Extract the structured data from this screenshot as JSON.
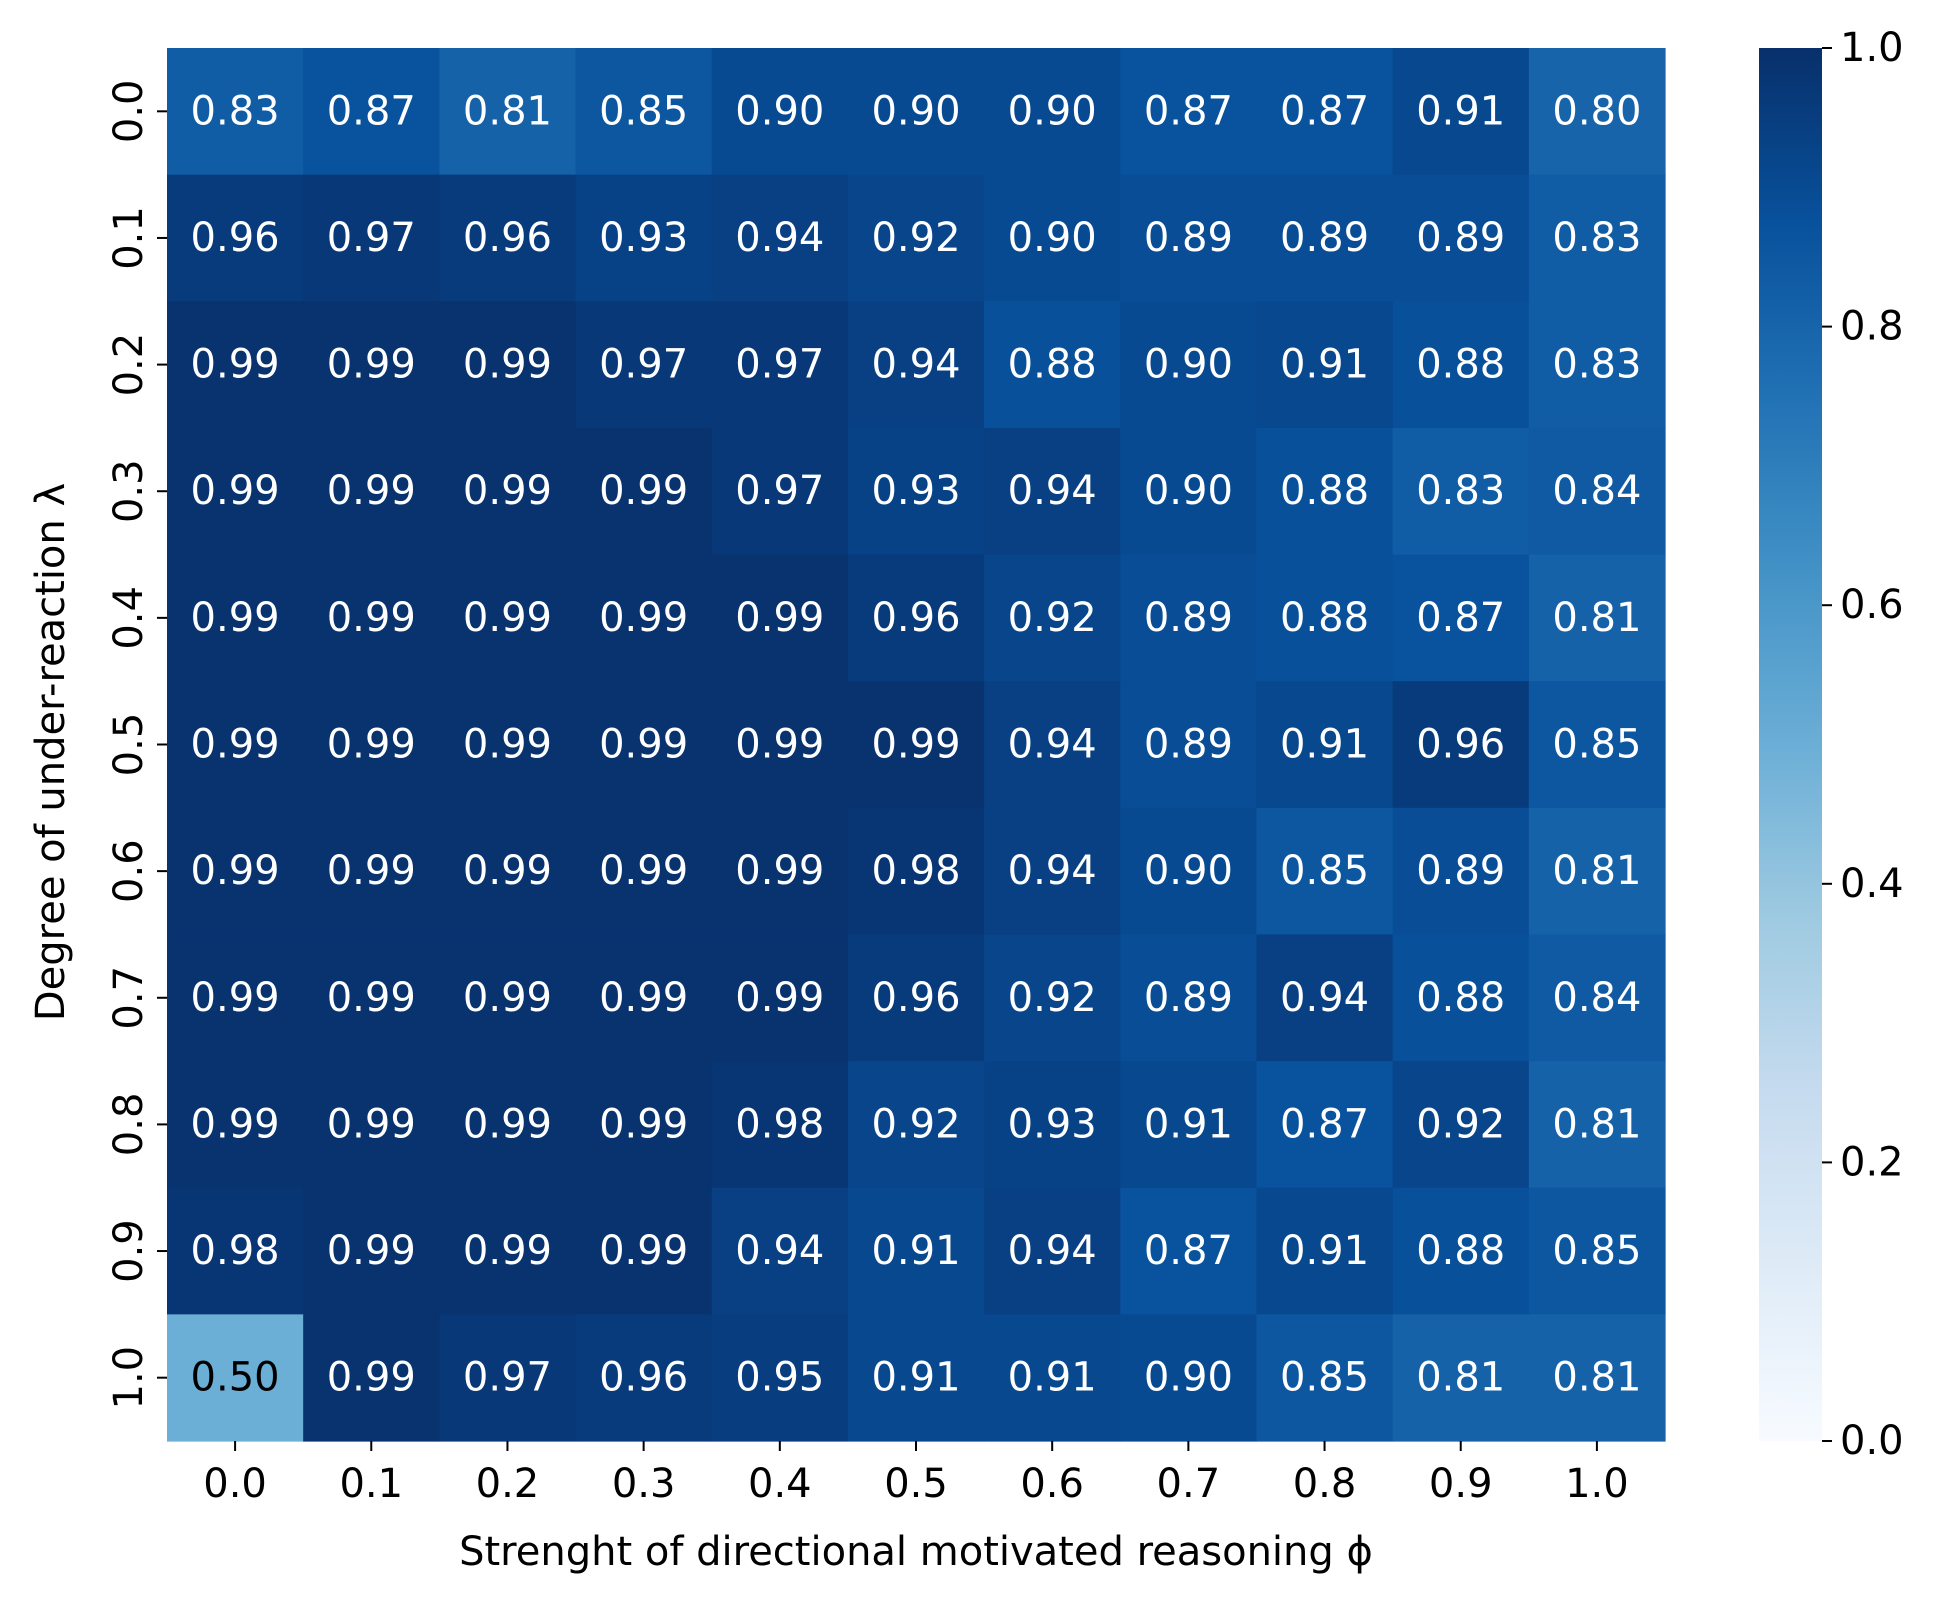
{
  "chart_data": {
    "type": "heatmap",
    "xlabel": "Strenght of directional motivated reasoning ϕ",
    "ylabel": "Degree of under-reaction λ",
    "x_categories": [
      "0.0",
      "0.1",
      "0.2",
      "0.3",
      "0.4",
      "0.5",
      "0.6",
      "0.7",
      "0.8",
      "0.9",
      "1.0"
    ],
    "y_categories": [
      "0.0",
      "0.1",
      "0.2",
      "0.3",
      "0.4",
      "0.5",
      "0.6",
      "0.7",
      "0.8",
      "0.9",
      "1.0"
    ],
    "values": [
      [
        0.83,
        0.87,
        0.81,
        0.85,
        0.9,
        0.9,
        0.9,
        0.87,
        0.87,
        0.91,
        0.8
      ],
      [
        0.96,
        0.97,
        0.96,
        0.93,
        0.94,
        0.92,
        0.9,
        0.89,
        0.89,
        0.89,
        0.83
      ],
      [
        0.99,
        0.99,
        0.99,
        0.97,
        0.97,
        0.94,
        0.88,
        0.9,
        0.91,
        0.88,
        0.83
      ],
      [
        0.99,
        0.99,
        0.99,
        0.99,
        0.97,
        0.93,
        0.94,
        0.9,
        0.88,
        0.83,
        0.84
      ],
      [
        0.99,
        0.99,
        0.99,
        0.99,
        0.99,
        0.96,
        0.92,
        0.89,
        0.88,
        0.87,
        0.81
      ],
      [
        0.99,
        0.99,
        0.99,
        0.99,
        0.99,
        0.99,
        0.94,
        0.89,
        0.91,
        0.96,
        0.85
      ],
      [
        0.99,
        0.99,
        0.99,
        0.99,
        0.99,
        0.98,
        0.94,
        0.9,
        0.85,
        0.89,
        0.81
      ],
      [
        0.99,
        0.99,
        0.99,
        0.99,
        0.99,
        0.96,
        0.92,
        0.89,
        0.94,
        0.88,
        0.84
      ],
      [
        0.99,
        0.99,
        0.99,
        0.99,
        0.98,
        0.92,
        0.93,
        0.91,
        0.87,
        0.92,
        0.81
      ],
      [
        0.98,
        0.99,
        0.99,
        0.99,
        0.94,
        0.91,
        0.94,
        0.87,
        0.91,
        0.88,
        0.85
      ],
      [
        0.5,
        0.99,
        0.97,
        0.96,
        0.95,
        0.91,
        0.91,
        0.9,
        0.85,
        0.81,
        0.81
      ]
    ],
    "value_labels": [
      [
        "0.83",
        "0.87",
        "0.81",
        "0.85",
        "0.90",
        "0.90",
        "0.90",
        "0.87",
        "0.87",
        "0.91",
        "0.80"
      ],
      [
        "0.96",
        "0.97",
        "0.96",
        "0.93",
        "0.94",
        "0.92",
        "0.90",
        "0.89",
        "0.89",
        "0.89",
        "0.83"
      ],
      [
        "0.99",
        "0.99",
        "0.99",
        "0.97",
        "0.97",
        "0.94",
        "0.88",
        "0.90",
        "0.91",
        "0.88",
        "0.83"
      ],
      [
        "0.99",
        "0.99",
        "0.99",
        "0.99",
        "0.97",
        "0.93",
        "0.94",
        "0.90",
        "0.88",
        "0.83",
        "0.84"
      ],
      [
        "0.99",
        "0.99",
        "0.99",
        "0.99",
        "0.99",
        "0.96",
        "0.92",
        "0.89",
        "0.88",
        "0.87",
        "0.81"
      ],
      [
        "0.99",
        "0.99",
        "0.99",
        "0.99",
        "0.99",
        "0.99",
        "0.94",
        "0.89",
        "0.91",
        "0.96",
        "0.85"
      ],
      [
        "0.99",
        "0.99",
        "0.99",
        "0.99",
        "0.99",
        "0.98",
        "0.94",
        "0.90",
        "0.85",
        "0.89",
        "0.81"
      ],
      [
        "0.99",
        "0.99",
        "0.99",
        "0.99",
        "0.99",
        "0.96",
        "0.92",
        "0.89",
        "0.94",
        "0.88",
        "0.84"
      ],
      [
        "0.99",
        "0.99",
        "0.99",
        "0.99",
        "0.98",
        "0.92",
        "0.93",
        "0.91",
        "0.87",
        "0.92",
        "0.81"
      ],
      [
        "0.98",
        "0.99",
        "0.99",
        "0.99",
        "0.94",
        "0.91",
        "0.94",
        "0.87",
        "0.91",
        "0.88",
        "0.85"
      ],
      [
        "0.50",
        "0.99",
        "0.97",
        "0.96",
        "0.95",
        "0.91",
        "0.91",
        "0.90",
        "0.85",
        "0.81",
        "0.81"
      ]
    ],
    "colorbar": {
      "range": [
        0.0,
        1.0
      ],
      "ticks": [
        "0.0",
        "0.2",
        "0.4",
        "0.6",
        "0.8",
        "1.0"
      ],
      "colormap": "Blues",
      "placement": "right"
    },
    "grid": false
  }
}
